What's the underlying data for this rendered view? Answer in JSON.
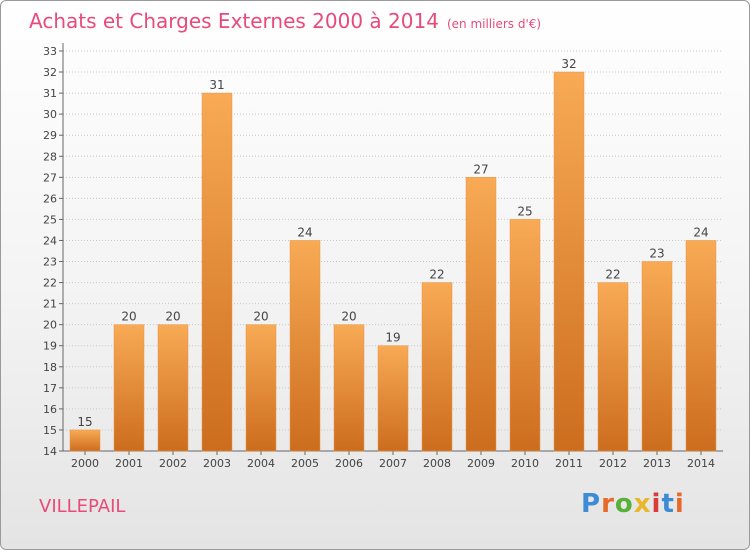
{
  "header": {
    "title": "Achats et Charges Externes 2000 à 2014",
    "subtitle": "(en milliers d'€)"
  },
  "footer": {
    "commune": "VILLEPAIL",
    "logo_text": "Proxiti"
  },
  "colors": {
    "title": "#e84a7a",
    "bar_light": "#f7a652",
    "bar_dark": "#cf6f1f",
    "grid": "#c8c8c8"
  },
  "chart_data": {
    "type": "bar",
    "title": "Achats et Charges Externes 2000 à 2014",
    "categories": [
      "2000",
      "2001",
      "2002",
      "2003",
      "2004",
      "2005",
      "2006",
      "2007",
      "2008",
      "2009",
      "2010",
      "2011",
      "2012",
      "2013",
      "2014"
    ],
    "values": [
      15,
      20,
      20,
      31,
      20,
      24,
      20,
      19,
      22,
      27,
      25,
      32,
      22,
      23,
      24
    ],
    "ylim": [
      14,
      33
    ],
    "yticks": [
      14,
      15,
      16,
      17,
      18,
      19,
      20,
      21,
      22,
      23,
      24,
      25,
      26,
      27,
      28,
      29,
      30,
      31,
      32,
      33
    ],
    "grid": true,
    "xlabel": "",
    "ylabel": ""
  }
}
